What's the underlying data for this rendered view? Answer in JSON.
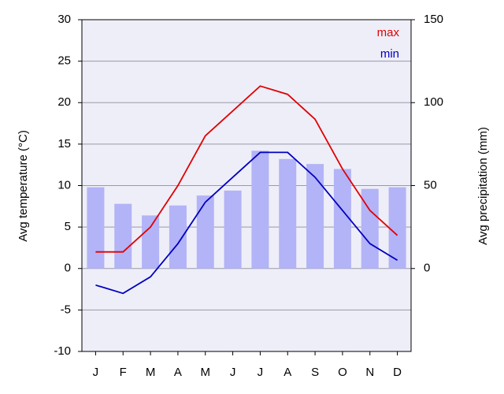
{
  "chart_data": {
    "type": "combo",
    "y_label": "Avg temperature (°C)",
    "y2_label": "Avg precipitation (mm)",
    "categories": [
      "J",
      "F",
      "M",
      "A",
      "M",
      "J",
      "J",
      "A",
      "S",
      "O",
      "N",
      "D"
    ],
    "ylim": [
      -10,
      30
    ],
    "yticks": [
      -10,
      -5,
      0,
      5,
      10,
      15,
      20,
      25,
      30
    ],
    "y2lim": [
      -50,
      150
    ],
    "y2ticks": [
      0,
      50,
      100,
      150
    ],
    "grid": true,
    "legend": "top-right",
    "series": [
      {
        "type": "bar",
        "axis": "y2",
        "color": "#b3b3f7",
        "values": [
          49,
          39,
          32,
          38,
          44,
          47,
          71,
          66,
          63,
          60,
          48,
          49
        ]
      },
      {
        "type": "line",
        "name": "max",
        "color": "#e00000",
        "values": [
          2,
          2,
          5,
          10,
          16,
          19,
          22,
          21,
          18,
          12,
          7,
          4
        ]
      },
      {
        "type": "line",
        "name": "min",
        "color": "#0000c0",
        "values": [
          -2,
          -3,
          -1,
          3,
          8,
          11,
          14,
          14,
          11,
          7,
          3,
          1
        ]
      }
    ]
  }
}
